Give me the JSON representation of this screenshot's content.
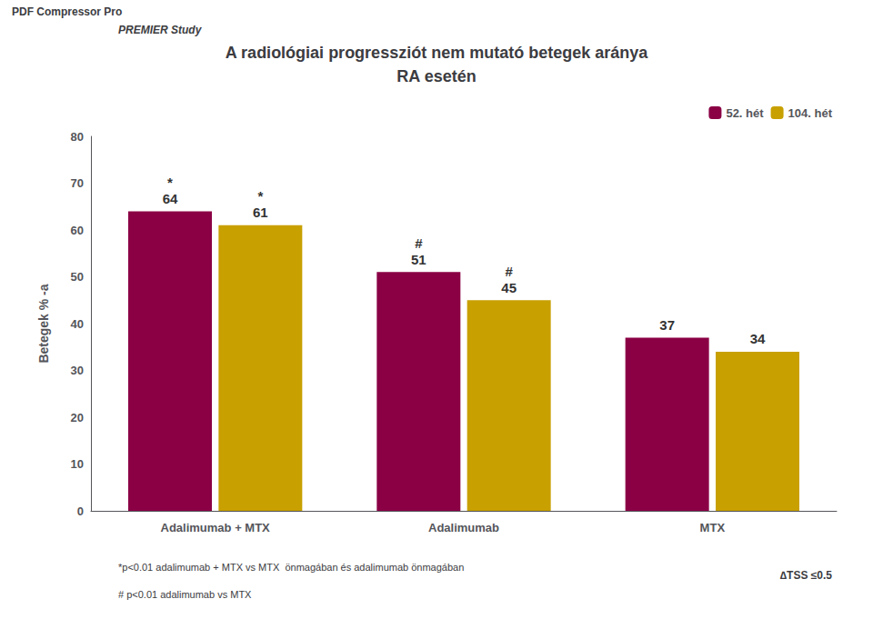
{
  "chart_data": {
    "type": "bar",
    "title": [
      "A radiológiai progressziót nem mutató betegek aránya",
      "RA esetén"
    ],
    "subtitle": "PREMIER Study",
    "watermark": "PDF Compressor Pro",
    "ylabel": "Betegek % -a",
    "categories": [
      "Adalimumab + MTX",
      "Adalimumab",
      "MTX"
    ],
    "series": [
      {
        "name": "52. hét",
        "color": "#8B0045",
        "values": [
          64,
          51,
          37
        ],
        "symbols": [
          "*",
          "#",
          null
        ]
      },
      {
        "name": "104. hét",
        "color": "#C8A000",
        "values": [
          61,
          45,
          34
        ],
        "symbols": [
          "*",
          "#",
          null
        ]
      }
    ],
    "ylim": [
      0,
      80
    ],
    "yticks": [
      0,
      10,
      20,
      30,
      40,
      50,
      60,
      70,
      80
    ],
    "grid": false,
    "legend": "upper right",
    "data_labels": true,
    "footnotes": [
      "*p<0.01 adalimumab + MTX vs MTX  önmagában és adalimumab önmagában",
      "# p<0.01 adalimumab vs MTX"
    ],
    "note": "∆TSS ≤0.5"
  }
}
